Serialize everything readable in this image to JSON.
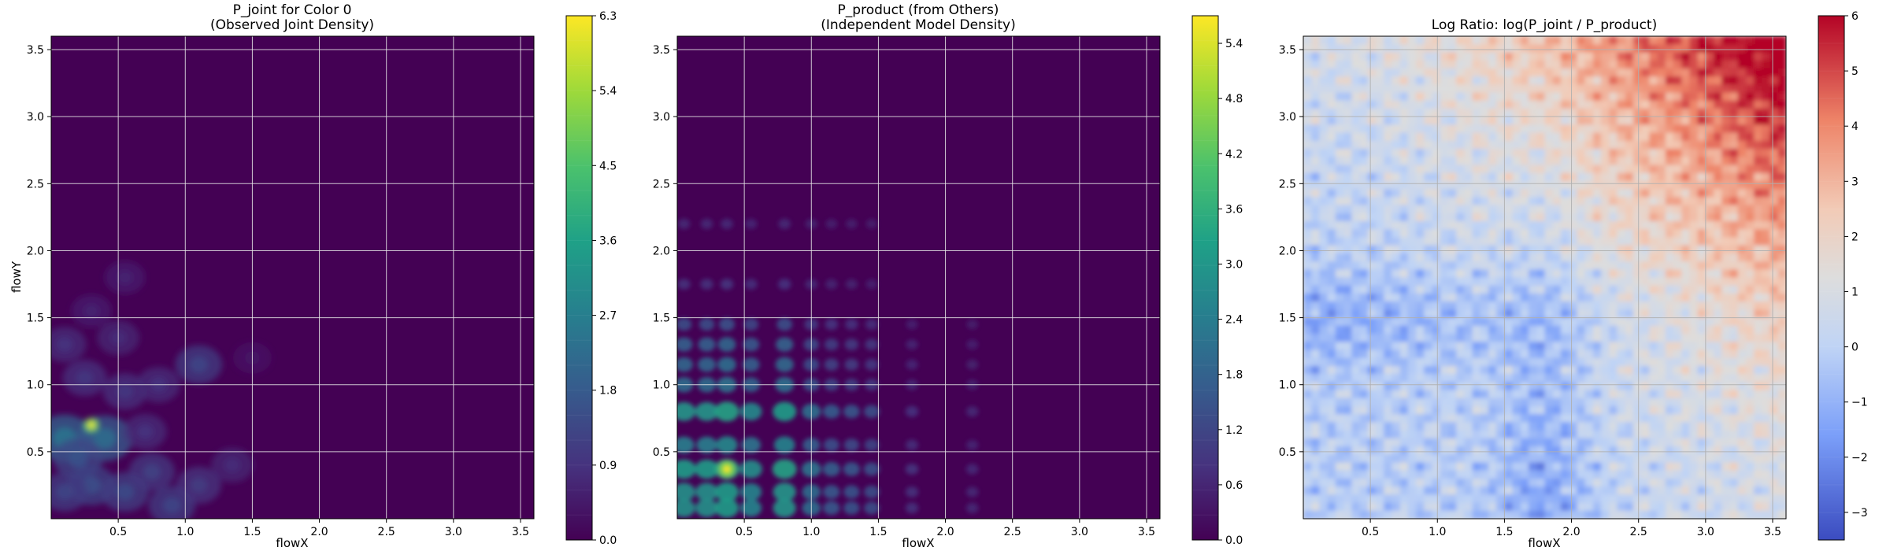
{
  "chart_data": [
    {
      "type": "heatmap",
      "title": "P_joint for Color 0\n(Observed Joint Density)",
      "xlabel": "flowX",
      "ylabel": "flowY",
      "xlim": [
        0.0,
        3.6
      ],
      "ylim": [
        0.0,
        3.6
      ],
      "xticks": [
        "0.5",
        "1.0",
        "1.5",
        "2.0",
        "2.5",
        "3.0",
        "3.5"
      ],
      "yticks": [
        "0.5",
        "1.0",
        "1.5",
        "2.0",
        "2.5",
        "3.0",
        "3.5"
      ],
      "colormap": "viridis",
      "grid": true,
      "colorbar": {
        "min": 0.0,
        "max": 6.3,
        "ticks": [
          "0.0",
          "0.9",
          "1.8",
          "2.7",
          "3.6",
          "4.5",
          "5.4",
          "6.3"
        ]
      },
      "peak": {
        "x": 0.3,
        "y": 0.7,
        "value": 6.3
      },
      "hotspots": [
        {
          "x": 0.1,
          "y": 0.6,
          "value": 2.4
        },
        {
          "x": 0.4,
          "y": 0.6,
          "value": 2.2
        },
        {
          "x": 0.2,
          "y": 0.45,
          "value": 1.6
        },
        {
          "x": 0.3,
          "y": 0.25,
          "value": 1.5
        },
        {
          "x": 0.55,
          "y": 0.2,
          "value": 1.4
        },
        {
          "x": 0.75,
          "y": 0.35,
          "value": 1.2
        },
        {
          "x": 0.9,
          "y": 0.1,
          "value": 1.3
        },
        {
          "x": 0.1,
          "y": 0.2,
          "value": 1.3
        },
        {
          "x": 1.1,
          "y": 0.25,
          "value": 1.1
        },
        {
          "x": 0.55,
          "y": 0.95,
          "value": 1.0
        },
        {
          "x": 0.25,
          "y": 1.05,
          "value": 1.0
        },
        {
          "x": 1.1,
          "y": 1.15,
          "value": 1.3
        },
        {
          "x": 0.5,
          "y": 1.35,
          "value": 0.8
        },
        {
          "x": 0.1,
          "y": 1.3,
          "value": 0.9
        },
        {
          "x": 0.8,
          "y": 1.0,
          "value": 0.9
        },
        {
          "x": 1.35,
          "y": 0.4,
          "value": 0.8
        },
        {
          "x": 0.55,
          "y": 1.8,
          "value": 0.6
        },
        {
          "x": 0.3,
          "y": 1.55,
          "value": 0.6
        },
        {
          "x": 1.5,
          "y": 1.2,
          "value": 0.4
        },
        {
          "x": 0.7,
          "y": 0.65,
          "value": 0.9
        }
      ]
    },
    {
      "type": "heatmap",
      "title": "P_product (from Others)\n(Independent Model Density)",
      "xlabel": "flowX",
      "ylabel": "",
      "xlim": [
        0.0,
        3.6
      ],
      "ylim": [
        0.0,
        3.6
      ],
      "xticks": [
        "0.5",
        "1.0",
        "1.5",
        "2.0",
        "2.5",
        "3.0",
        "3.5"
      ],
      "yticks": [
        "0.5",
        "1.0",
        "1.5",
        "2.0",
        "2.5",
        "3.0",
        "3.5"
      ],
      "colormap": "viridis",
      "grid": true,
      "colorbar": {
        "min": 0.0,
        "max": 5.7,
        "ticks": [
          "0.0",
          "0.6",
          "1.2",
          "1.8",
          "2.4",
          "3.0",
          "3.6",
          "4.2",
          "4.8",
          "5.4"
        ]
      },
      "peak": {
        "x": 0.37,
        "y": 0.37,
        "value": 5.7
      },
      "x_marginal_peaks": [
        {
          "x": 0.05,
          "w": 0.9
        },
        {
          "x": 0.22,
          "w": 0.9
        },
        {
          "x": 0.37,
          "w": 1.0
        },
        {
          "x": 0.55,
          "w": 0.8
        },
        {
          "x": 0.8,
          "w": 0.95
        },
        {
          "x": 1.0,
          "w": 0.6
        },
        {
          "x": 1.15,
          "w": 0.45
        },
        {
          "x": 1.3,
          "w": 0.4
        },
        {
          "x": 1.45,
          "w": 0.35
        },
        {
          "x": 1.75,
          "w": 0.15
        },
        {
          "x": 2.2,
          "w": 0.1
        }
      ],
      "y_marginal_peaks": [
        {
          "y": 0.08,
          "w": 0.9
        },
        {
          "y": 0.2,
          "w": 0.9
        },
        {
          "y": 0.37,
          "w": 1.0
        },
        {
          "y": 0.55,
          "w": 0.75
        },
        {
          "y": 0.8,
          "w": 0.95
        },
        {
          "y": 1.0,
          "w": 0.6
        },
        {
          "y": 1.15,
          "w": 0.55
        },
        {
          "y": 1.3,
          "w": 0.5
        },
        {
          "y": 1.45,
          "w": 0.35
        },
        {
          "y": 1.75,
          "w": 0.15
        },
        {
          "y": 2.2,
          "w": 0.1
        }
      ]
    },
    {
      "type": "heatmap",
      "title": "Log Ratio: log(P_joint / P_product)",
      "xlabel": "flowX",
      "ylabel": "",
      "xlim": [
        0.0,
        3.6
      ],
      "ylim": [
        0.0,
        3.6
      ],
      "xticks": [
        "0.5",
        "1.0",
        "1.5",
        "2.0",
        "2.5",
        "3.0",
        "3.5"
      ],
      "yticks": [
        "0.5",
        "1.0",
        "1.5",
        "2.0",
        "2.5",
        "3.0",
        "3.5"
      ],
      "colormap": "coolwarm",
      "grid": true,
      "colorbar": {
        "min": -3.5,
        "max": 6.0,
        "ticks": [
          "−3",
          "−2",
          "−1",
          "0",
          "1",
          "2",
          "3",
          "4",
          "5",
          "6"
        ]
      },
      "max_value": {
        "x": 3.5,
        "y": 3.5,
        "value": 6.0
      },
      "min_value": {
        "x": 0.4,
        "y": 0.4,
        "value": -2.5
      }
    }
  ]
}
